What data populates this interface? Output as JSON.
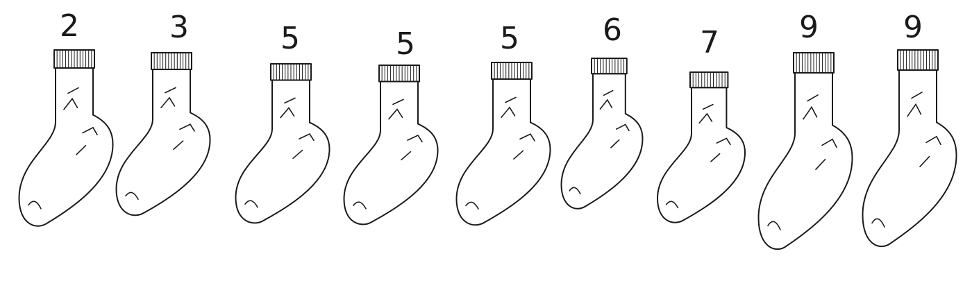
{
  "socks": [
    {
      "number": "2",
      "pattern": "grid",
      "color": "#f6f6f6"
    },
    {
      "number": "3",
      "pattern": "speckle-dark",
      "color": "#8a8a8a"
    },
    {
      "number": "5",
      "pattern": "speckle-light",
      "color": "#ececec"
    },
    {
      "number": "5",
      "pattern": "speckle-light",
      "color": "#ececec"
    },
    {
      "number": "5",
      "pattern": "speckle-light",
      "color": "#ececec"
    },
    {
      "number": "6",
      "pattern": "fuzzy-stripes",
      "color": "#efefef"
    },
    {
      "number": "7",
      "pattern": "dashes",
      "color": "#e2e2e2"
    },
    {
      "number": "9",
      "pattern": "horizontal-stripes",
      "color": "#f8f8f8"
    },
    {
      "number": "9",
      "pattern": "horizontal-stripes",
      "color": "#f8f8f8"
    }
  ]
}
